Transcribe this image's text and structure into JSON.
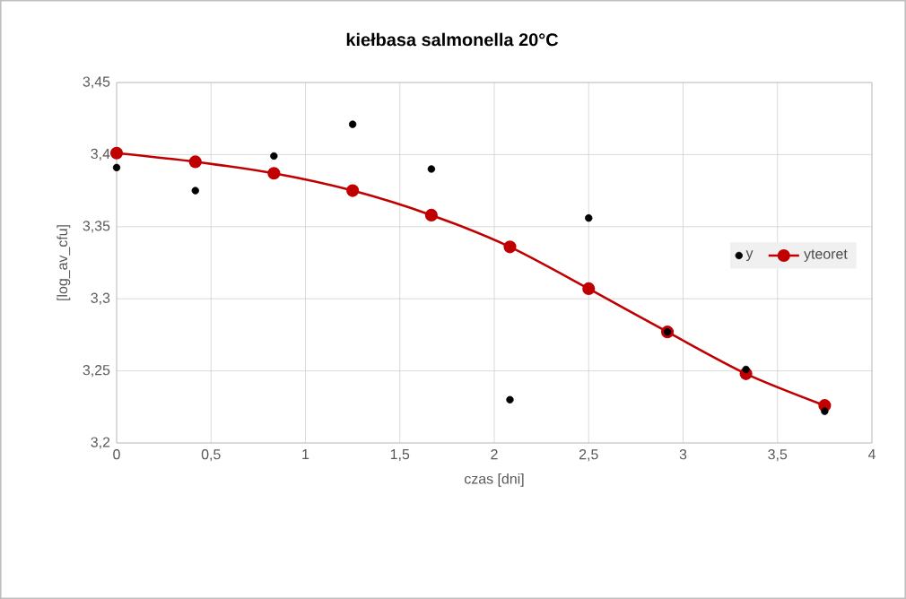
{
  "chart_data": {
    "type": "scatter",
    "title": "kiełbasa salmonella 20°C",
    "xlabel": "czas  [dni]",
    "ylabel": "[log_av_cfu]",
    "x": [
      0,
      0.417,
      0.833,
      1.25,
      1.667,
      2.083,
      2.5,
      2.917,
      3.333,
      3.75
    ],
    "series": [
      {
        "name": "y",
        "color": "#000000",
        "marker": "circle",
        "values": [
          3.391,
          3.375,
          3.399,
          3.421,
          3.39,
          3.23,
          3.356,
          3.277,
          3.251,
          3.222
        ]
      },
      {
        "name": "yteoret",
        "type": "line",
        "color": "#c00000",
        "marker": "circle",
        "line_style": "solid",
        "values": [
          3.401,
          3.395,
          3.387,
          3.375,
          3.358,
          3.336,
          3.307,
          3.277,
          3.248,
          3.226
        ]
      }
    ],
    "xlim": [
      0,
      4
    ],
    "ylim": [
      3.2,
      3.45
    ],
    "xticks": [
      0,
      {
        "value": 0.5,
        "label": "0,5"
      },
      1,
      {
        "value": 1.5,
        "label": "1,5"
      },
      2,
      {
        "value": 2.5,
        "label": "2,5"
      },
      3,
      {
        "value": 3.5,
        "label": "3,5"
      },
      4
    ],
    "yticks": [
      {
        "value": 3.2,
        "label": "3,2"
      },
      {
        "value": 3.25,
        "label": "3,25"
      },
      {
        "value": 3.3,
        "label": "3,3"
      },
      {
        "value": 3.35,
        "label": "3,35"
      },
      {
        "value": 3.4,
        "label": "3,4"
      },
      {
        "value": 3.45,
        "label": "3,45"
      }
    ],
    "grid": true,
    "legend": "right"
  }
}
